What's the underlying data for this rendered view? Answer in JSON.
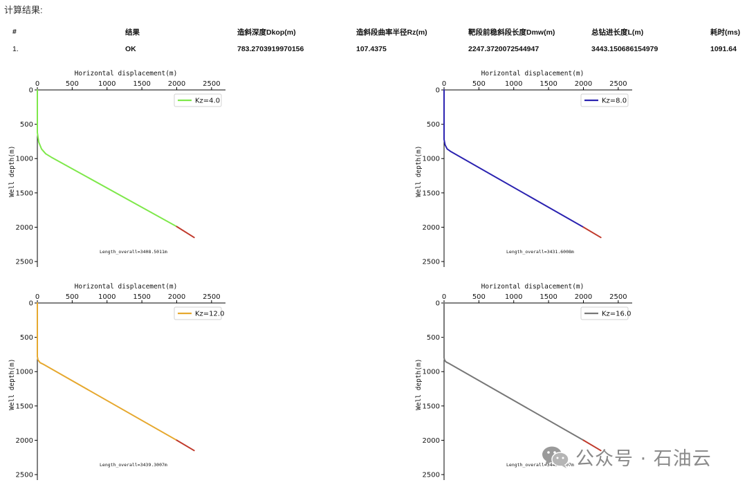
{
  "heading": "计算结果:",
  "table": {
    "headers": [
      "#",
      "结果",
      "造斜深度Dkop(m)",
      "造斜段曲率半径Rz(m)",
      "靶段前稳斜段长度Dmw(m)",
      "总钻进长度L(m)",
      "耗时(ms)"
    ],
    "rows": [
      [
        "1.",
        "OK",
        "783.2703919970156",
        "107.4375",
        "2247.3720072544947",
        "3443.150686154979",
        "1091.64"
      ]
    ]
  },
  "chart_data": [
    {
      "type": "line",
      "xlabel": "Horizontal displacement(m)",
      "ylabel": "Well depth(m)",
      "xlim": [
        0,
        2700
      ],
      "ylim": [
        2580,
        0
      ],
      "x_ticks": [
        "0",
        "500",
        "1000",
        "1500",
        "2000",
        "2500"
      ],
      "y_ticks": [
        "0",
        "500",
        "1000",
        "1500",
        "2000",
        "2500"
      ],
      "legend": "top-right",
      "series": [
        {
          "name": "Kz=4.0",
          "color": "#7ee84a",
          "x": [
            0,
            0,
            20,
            60,
            120,
            200,
            2000
          ],
          "y": [
            0,
            620,
            760,
            860,
            930,
            980,
            1990
          ]
        },
        {
          "color": "#c0392b",
          "x": [
            2000,
            2250
          ],
          "y": [
            1990,
            2150
          ]
        }
      ],
      "annotation": "Length_overall=3408.5011m"
    },
    {
      "type": "line",
      "xlabel": "Horizontal displacement(m)",
      "ylabel": "Well depth(m)",
      "xlim": [
        0,
        2700
      ],
      "ylim": [
        2580,
        0
      ],
      "x_ticks": [
        "0",
        "500",
        "1000",
        "1500",
        "2000",
        "2500"
      ],
      "y_ticks": [
        "0",
        "500",
        "1000",
        "1500",
        "2000",
        "2500"
      ],
      "legend": "top-right",
      "series": [
        {
          "name": "Kz=8.0",
          "color": "#2a22b0",
          "x": [
            0,
            0,
            15,
            45,
            100,
            2000
          ],
          "y": [
            0,
            720,
            800,
            860,
            900,
            2000
          ]
        },
        {
          "color": "#c0392b",
          "x": [
            2000,
            2250
          ],
          "y": [
            2000,
            2150
          ]
        }
      ],
      "annotation": "Length_overall=3431.6008m"
    },
    {
      "type": "line",
      "xlabel": "Horizontal displacement(m)",
      "ylabel": "Well depth(m)",
      "xlim": [
        0,
        2700
      ],
      "ylim": [
        2580,
        0
      ],
      "x_ticks": [
        "0",
        "500",
        "1000",
        "1500",
        "2000",
        "2500"
      ],
      "y_ticks": [
        "0",
        "500",
        "1000",
        "1500",
        "2000",
        "2500"
      ],
      "legend": "top-right",
      "series": [
        {
          "name": "Kz=12.0",
          "color": "#e6a82e",
          "x": [
            0,
            0,
            10,
            40,
            80,
            2000
          ],
          "y": [
            0,
            780,
            830,
            870,
            890,
            2000
          ]
        },
        {
          "color": "#c0392b",
          "x": [
            2000,
            2250
          ],
          "y": [
            2000,
            2150
          ]
        }
      ],
      "annotation": "Length_overall=3439.3007m"
    },
    {
      "type": "line",
      "xlabel": "Horizontal displacement(m)",
      "ylabel": "Well depth(m)",
      "xlim": [
        0,
        2700
      ],
      "ylim": [
        2580,
        0
      ],
      "x_ticks": [
        "0",
        "500",
        "1000",
        "1500",
        "2000",
        "2500"
      ],
      "y_ticks": [
        "0",
        "500",
        "1000",
        "1500",
        "2000",
        "2500"
      ],
      "legend": "top-right",
      "series": [
        {
          "name": "Kz=16.0",
          "color": "#777777",
          "x": [
            0,
            0,
            10,
            30,
            60,
            2000
          ],
          "y": [
            0,
            800,
            835,
            860,
            875,
            2000
          ]
        },
        {
          "color": "#c0392b",
          "x": [
            2000,
            2250
          ],
          "y": [
            2000,
            2150
          ]
        }
      ],
      "annotation": "Length_overall=3443.1507m"
    }
  ],
  "watermark": {
    "text": "公众号 · 石油云",
    "icon": "wechat-icon"
  }
}
